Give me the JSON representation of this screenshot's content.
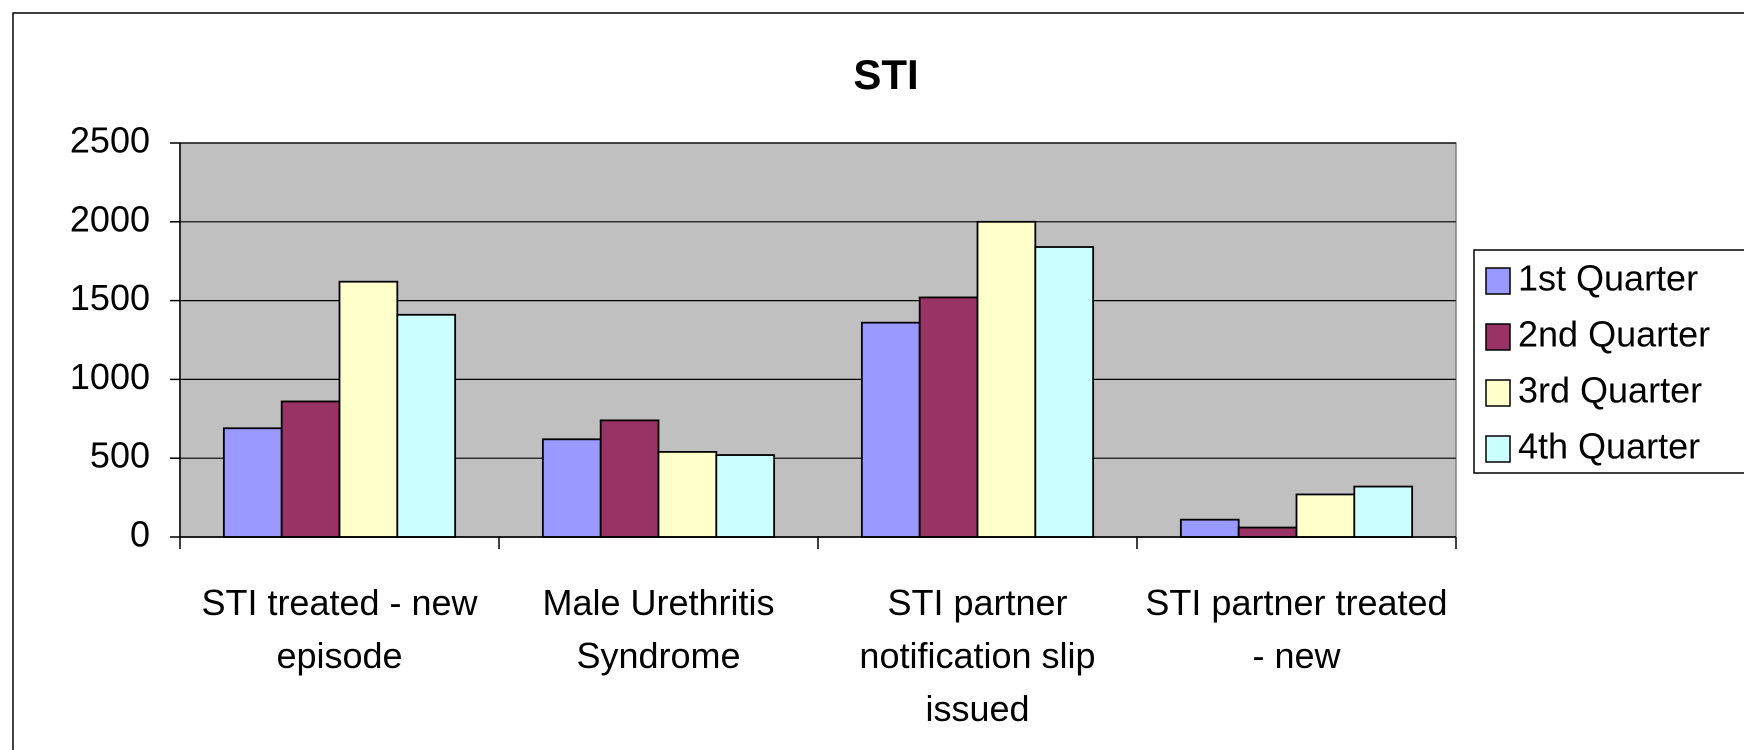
{
  "chart_data": {
    "type": "bar",
    "title": "STI",
    "categories": [
      "STI treated - new episode",
      "Male Urethritis Syndrome",
      "STI partner notification slip issued",
      "STI partner treated - new"
    ],
    "series": [
      {
        "name": "1st Quarter",
        "color": "#9999ff",
        "values": [
          690,
          620,
          1360,
          110
        ]
      },
      {
        "name": "2nd Quarter",
        "color": "#993366",
        "values": [
          860,
          740,
          1520,
          60
        ]
      },
      {
        "name": "3rd Quarter",
        "color": "#ffffcc",
        "values": [
          1620,
          540,
          2000,
          270
        ]
      },
      {
        "name": "4th Quarter",
        "color": "#ccffff",
        "values": [
          1410,
          520,
          1840,
          320
        ]
      }
    ],
    "ylim": [
      0,
      2500
    ],
    "yticks": [
      0,
      500,
      1000,
      1500,
      2000,
      2500
    ],
    "grid": true,
    "legend": "right"
  }
}
